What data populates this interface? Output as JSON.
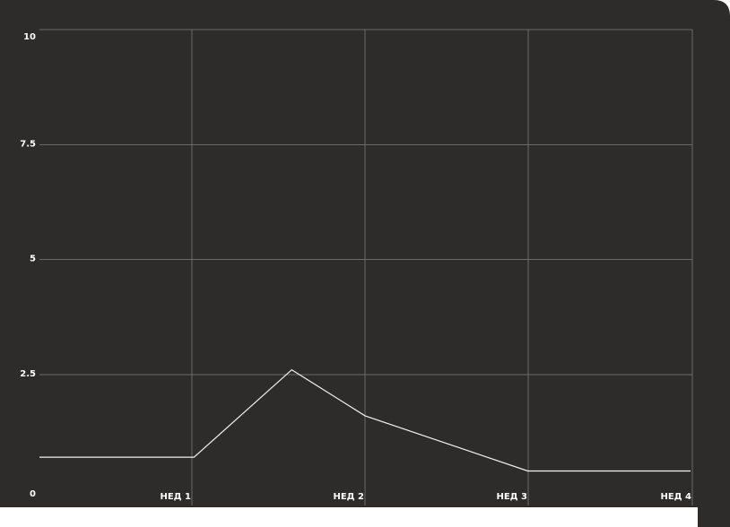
{
  "chart_data": {
    "type": "line",
    "title": "",
    "xlabel": "",
    "ylabel": "",
    "ylim": [
      0,
      10
    ],
    "xlim": [
      0,
      4
    ],
    "y_ticks": [
      {
        "value": 0,
        "label": "0"
      },
      {
        "value": 2.5,
        "label": "2.5"
      },
      {
        "value": 5,
        "label": "5"
      },
      {
        "value": 7.5,
        "label": "7.5"
      },
      {
        "value": 10,
        "label": "10"
      }
    ],
    "x_ticks": [
      {
        "value": 1,
        "label": "НЕД 1"
      },
      {
        "value": 2,
        "label": "НЕД 2"
      },
      {
        "value": 3,
        "label": "НЕД 3"
      },
      {
        "value": 4,
        "label": "НЕД 4"
      }
    ],
    "grid": true,
    "legend": "none",
    "series": [
      {
        "x": [
          0,
          0.95,
          1.55,
          2.0,
          3.0,
          4.0
        ],
        "values": [
          0.7,
          0.7,
          2.6,
          1.6,
          0.4,
          0.4
        ]
      }
    ],
    "colors": {
      "background": "#2e2c2a",
      "grid": "#6a6a6a",
      "line": "#f2f2f2",
      "text": "#ffffff"
    }
  }
}
